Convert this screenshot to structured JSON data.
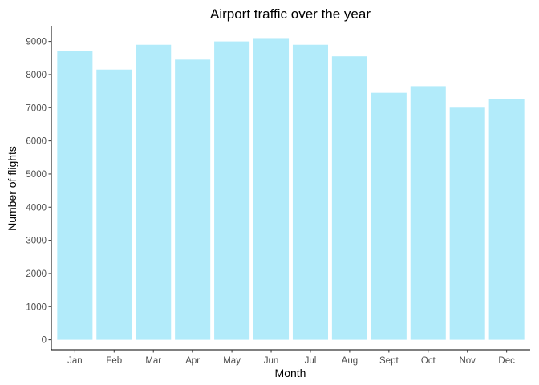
{
  "chart_data": {
    "type": "bar",
    "title": "Airport traffic over the year",
    "xlabel": "Month",
    "ylabel": "Number of flights",
    "categories": [
      "Jan",
      "Feb",
      "Mar",
      "Apr",
      "May",
      "Jun",
      "Jul",
      "Aug",
      "Sept",
      "Oct",
      "Nov",
      "Dec"
    ],
    "values": [
      8700,
      8150,
      8900,
      8450,
      9000,
      9100,
      8900,
      8550,
      7450,
      7650,
      7000,
      7250
    ],
    "ylim": [
      -300,
      9450
    ],
    "yticks": [
      0,
      1000,
      2000,
      3000,
      4000,
      5000,
      6000,
      7000,
      8000,
      9000
    ],
    "grid": false,
    "legend": "none",
    "bar_color": "#B2EBFA"
  }
}
